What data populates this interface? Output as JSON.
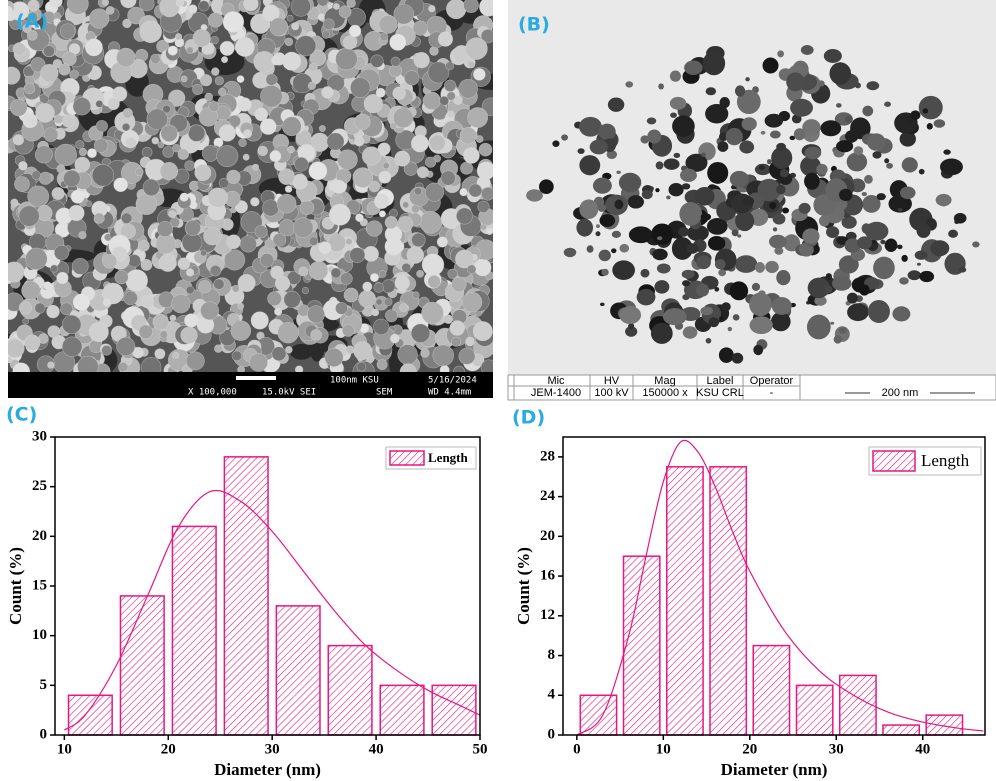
{
  "panels": {
    "a": "(A)",
    "b": "(B)",
    "c": "(C)",
    "d": "(D)"
  },
  "sem_bar": {
    "scale": "100nm KSU",
    "date": "5/16/2024",
    "mag": "X 100,000",
    "voltage": "15.0kV SEI",
    "mode": "SEM",
    "wd": "WD 4.4mm"
  },
  "tem_bar": {
    "headers": [
      "Mic",
      "HV",
      "Mag",
      "Label",
      "Operator"
    ],
    "values": [
      "JEM-1400",
      "100 kV",
      "150000 x",
      "KSU CRL",
      "-"
    ],
    "scale": "200 nm"
  },
  "chart_data": [
    {
      "type": "histogram",
      "xlabel": "Diameter (nm)",
      "ylabel": "Count (%)",
      "color": "#e6177f",
      "bins": [
        10,
        15,
        20,
        25,
        30,
        35,
        40,
        45,
        50
      ],
      "values": [
        4,
        14,
        21,
        28,
        13,
        9,
        5,
        5
      ],
      "series_name": "Length",
      "legend": "upper right",
      "fit": {
        "x": [
          10,
          12,
          15,
          18,
          21,
          24,
          27,
          30,
          33,
          36,
          39,
          42,
          45,
          48,
          50
        ],
        "y": [
          0.5,
          2,
          7,
          14,
          21,
          24.5,
          23.5,
          20.5,
          16.5,
          12.5,
          9,
          6.5,
          4.5,
          3,
          2
        ]
      },
      "xlim": [
        9.1,
        50
      ],
      "ylim": [
        0,
        30
      ],
      "xticks": [
        10,
        20,
        30,
        40,
        50
      ],
      "yticks": [
        0,
        5,
        10,
        15,
        20,
        25,
        30
      ]
    },
    {
      "type": "histogram",
      "xlabel": "Diameter (nm)",
      "ylabel": "Count (%)",
      "color": "#e6177f",
      "bins": [
        0,
        5,
        10,
        15,
        20,
        25,
        30,
        35,
        40,
        45
      ],
      "values": [
        4,
        18,
        27,
        27,
        9,
        5,
        6,
        1,
        2
      ],
      "series_name": "Length",
      "legend": "upper right",
      "fit": {
        "x": [
          0,
          3,
          6,
          8,
          10,
          12,
          14,
          16,
          18,
          20,
          24,
          28,
          32,
          36,
          40,
          44,
          47
        ],
        "y": [
          0,
          2,
          10,
          18,
          25.5,
          29.5,
          28.5,
          25,
          20.5,
          16.5,
          10.5,
          6.5,
          4,
          2.3,
          1.3,
          0.7,
          0.4
        ]
      },
      "xlim": [
        -1.6,
        47.2
      ],
      "ylim": [
        0,
        30
      ],
      "xticks": [
        0,
        10,
        20,
        30,
        40
      ],
      "yticks": [
        0,
        4,
        8,
        12,
        16,
        20,
        24,
        28
      ]
    }
  ]
}
